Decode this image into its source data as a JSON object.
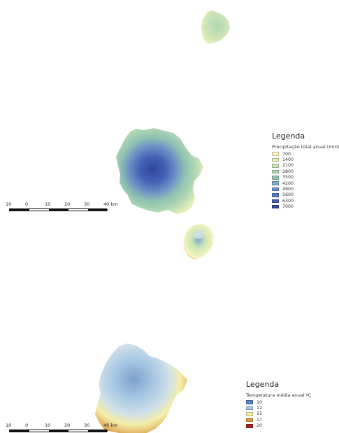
{
  "map_top": {
    "legend": {
      "title": "Legenda",
      "subtitle": "Precipitação total anual (mm)",
      "items": [
        {
          "label": "700",
          "color": "#fbf6c6"
        },
        {
          "label": "1400",
          "color": "#e4efb8"
        },
        {
          "label": "2100",
          "color": "#cbe3b6"
        },
        {
          "label": "2800",
          "color": "#afd6b4"
        },
        {
          "label": "3500",
          "color": "#8fc2b2"
        },
        {
          "label": "4200",
          "color": "#7fa9c6"
        },
        {
          "label": "4900",
          "color": "#6d91c7"
        },
        {
          "label": "5600",
          "color": "#5678c0"
        },
        {
          "label": "6300",
          "color": "#4561b4"
        },
        {
          "label": "7000",
          "color": "#2f479d"
        }
      ]
    },
    "scale_labels": [
      "10",
      "0",
      "10",
      "20",
      "30",
      "40 km"
    ]
  },
  "map_bottom": {
    "legend": {
      "title": "Legenda",
      "subtitle": "Temperatura média anual ºC",
      "items": [
        {
          "label": "10",
          "color": "#5b82c2"
        },
        {
          "label": "12",
          "color": "#a9c9e4"
        },
        {
          "label": "15",
          "color": "#f5eeaa"
        },
        {
          "label": "17",
          "color": "#d89a45"
        },
        {
          "label": "20",
          "color": "#a2231c"
        }
      ]
    },
    "scale_labels": [
      "10",
      "0",
      "10",
      "20",
      "30",
      "40 km"
    ]
  }
}
